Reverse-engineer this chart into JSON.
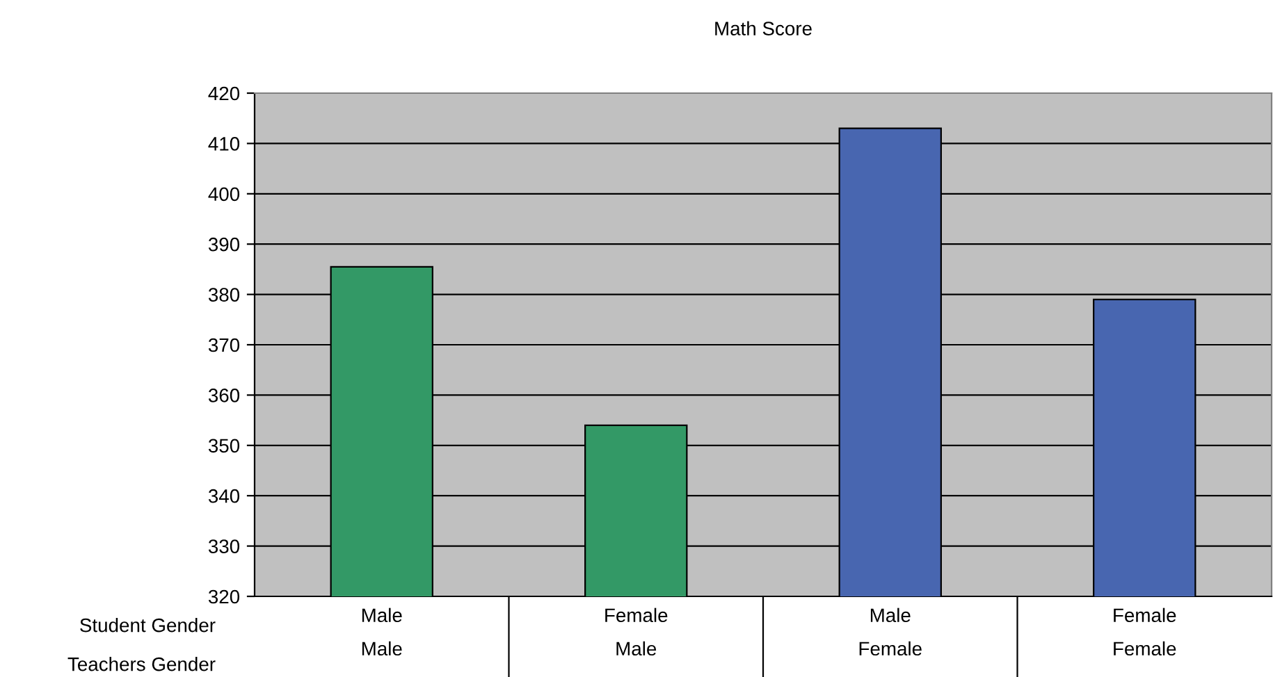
{
  "chart_data": {
    "type": "bar",
    "title": "Math Score",
    "categories": [
      "Male\nMale",
      "Female\nMale",
      "Male\nFemale",
      "Female\nFemale"
    ],
    "values": [
      385.5,
      354,
      413,
      379
    ],
    "colors": [
      "#339966",
      "#339966",
      "#4866b0",
      "#4866b0"
    ],
    "ylim": [
      320,
      420
    ],
    "yticks": [
      320,
      330,
      340,
      350,
      360,
      370,
      380,
      390,
      400,
      410,
      420
    ],
    "grid": "y",
    "annotations": [
      "Student Gender",
      "Teachers Gender"
    ]
  }
}
